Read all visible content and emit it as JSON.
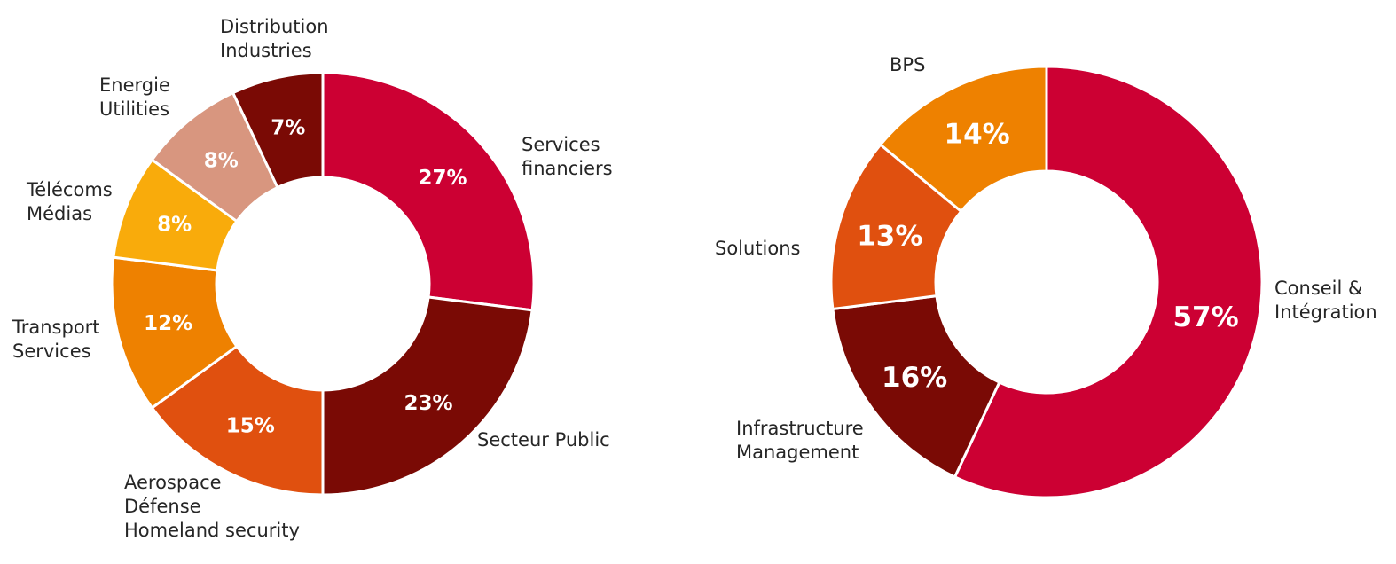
{
  "chart_data": [
    {
      "type": "pie",
      "title": "",
      "categories": [
        "Services financiers",
        "Secteur Public",
        "Aerospace Défense Homeland security",
        "Transport Services",
        "Télécoms Médias",
        "Energie Utilities",
        "Distribution Industries"
      ],
      "values": [
        27,
        23,
        15,
        12,
        8,
        8,
        7
      ],
      "value_labels": [
        "27%",
        "23%",
        "15%",
        "12%",
        "8%",
        "8%",
        "7%"
      ],
      "label_lines": [
        [
          "Services",
          "financiers"
        ],
        [
          "Secteur Public"
        ],
        [
          "Aerospace",
          "Défense",
          "Homeland security"
        ],
        [
          "Transport",
          "Services"
        ],
        [
          "Télécoms",
          "Médias"
        ],
        [
          "Energie",
          "Utilities"
        ],
        [
          "Distribution",
          "Industries"
        ]
      ],
      "colors": [
        "#cc0033",
        "#7a0a05",
        "#e0500f",
        "#ee8100",
        "#f9ab0b",
        "#d8967f",
        "#7a0a05"
      ],
      "start": "12 o'clock",
      "direction": "clockwise",
      "donut": true,
      "legend": "none"
    },
    {
      "type": "pie",
      "title": "",
      "categories": [
        "Conseil & Intégration",
        "Infrastructure Management",
        "Solutions",
        "BPS"
      ],
      "values": [
        57,
        16,
        13,
        14
      ],
      "value_labels": [
        "57%",
        "16%",
        "13%",
        "14%"
      ],
      "label_lines": [
        [
          "Conseil &",
          "Intégration"
        ],
        [
          "Infrastructure",
          "Management"
        ],
        [
          "Solutions"
        ],
        [
          "BPS"
        ]
      ],
      "colors": [
        "#cc0033",
        "#7a0a05",
        "#e0500f",
        "#ee8100"
      ],
      "start": "12 o'clock",
      "direction": "clockwise",
      "donut": true,
      "legend": "none"
    }
  ]
}
